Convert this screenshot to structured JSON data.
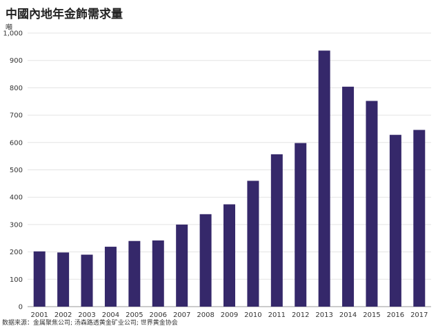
{
  "title": "中國內地年金飾需求量",
  "unit_label": "噸",
  "source": "数据来源：金属聚焦公司; 汤森路透黄金矿业公司; 世界黄金协会",
  "colors": {
    "bar": "#35286a",
    "grid": "#e3e3e3",
    "axis": "#999999"
  },
  "chart_data": {
    "type": "bar",
    "title": "中國內地年金飾需求量",
    "ylabel": "噸",
    "xlabel": "",
    "categories": [
      "2001",
      "2002",
      "2003",
      "2004",
      "2005",
      "2006",
      "2007",
      "2008",
      "2009",
      "2010",
      "2011",
      "2012",
      "2013",
      "2014",
      "2015",
      "2016",
      "2017"
    ],
    "values": [
      202,
      198,
      190,
      219,
      240,
      242,
      300,
      338,
      374,
      460,
      557,
      598,
      936,
      804,
      752,
      628,
      646
    ],
    "ylim": [
      0,
      1000
    ],
    "yticks": [
      0,
      100,
      200,
      300,
      400,
      500,
      600,
      700,
      800,
      900,
      1000
    ],
    "ytick_labels": [
      "0",
      "100",
      "200",
      "300",
      "400",
      "500",
      "600",
      "700",
      "800",
      "900",
      "1,000"
    ],
    "grid": true
  }
}
